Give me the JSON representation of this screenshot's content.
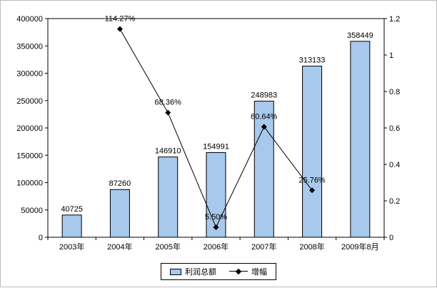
{
  "chart_data": {
    "type": "bar+line",
    "title": "",
    "categories": [
      "2003年",
      "2004年",
      "2005年",
      "2006年",
      "2007年",
      "2008年",
      "2009年8月"
    ],
    "series": [
      {
        "name": "利润总额",
        "type": "bar",
        "color": "#A8C8EC",
        "values": [
          40725,
          87260,
          146910,
          154991,
          248983,
          313133,
          358449
        ],
        "value_labels": [
          "40725",
          "87260",
          "146910",
          "154991",
          "248983",
          "313133",
          "358449"
        ]
      },
      {
        "name": "增幅",
        "type": "line",
        "color": "#000000",
        "marker": "diamond",
        "values": [
          null,
          1.1427,
          0.6836,
          0.055,
          0.6064,
          0.2576,
          null
        ],
        "point_labels": [
          "",
          "114.27%",
          "68.36%",
          "5.50%",
          "60.64%",
          "25.76%",
          ""
        ]
      }
    ],
    "left_axis": {
      "min": 0,
      "max": 400000,
      "step": 50000,
      "tick_labels": [
        "0",
        "50000",
        "100000",
        "150000",
        "200000",
        "250000",
        "300000",
        "350000",
        "400000"
      ]
    },
    "right_axis": {
      "min": 0,
      "max": 1.2,
      "step": 0.2,
      "tick_labels": [
        "0",
        "0.2",
        "0.4",
        "0.6",
        "0.8",
        "1",
        "1.2"
      ]
    },
    "grid": false,
    "legend_position": "bottom"
  }
}
